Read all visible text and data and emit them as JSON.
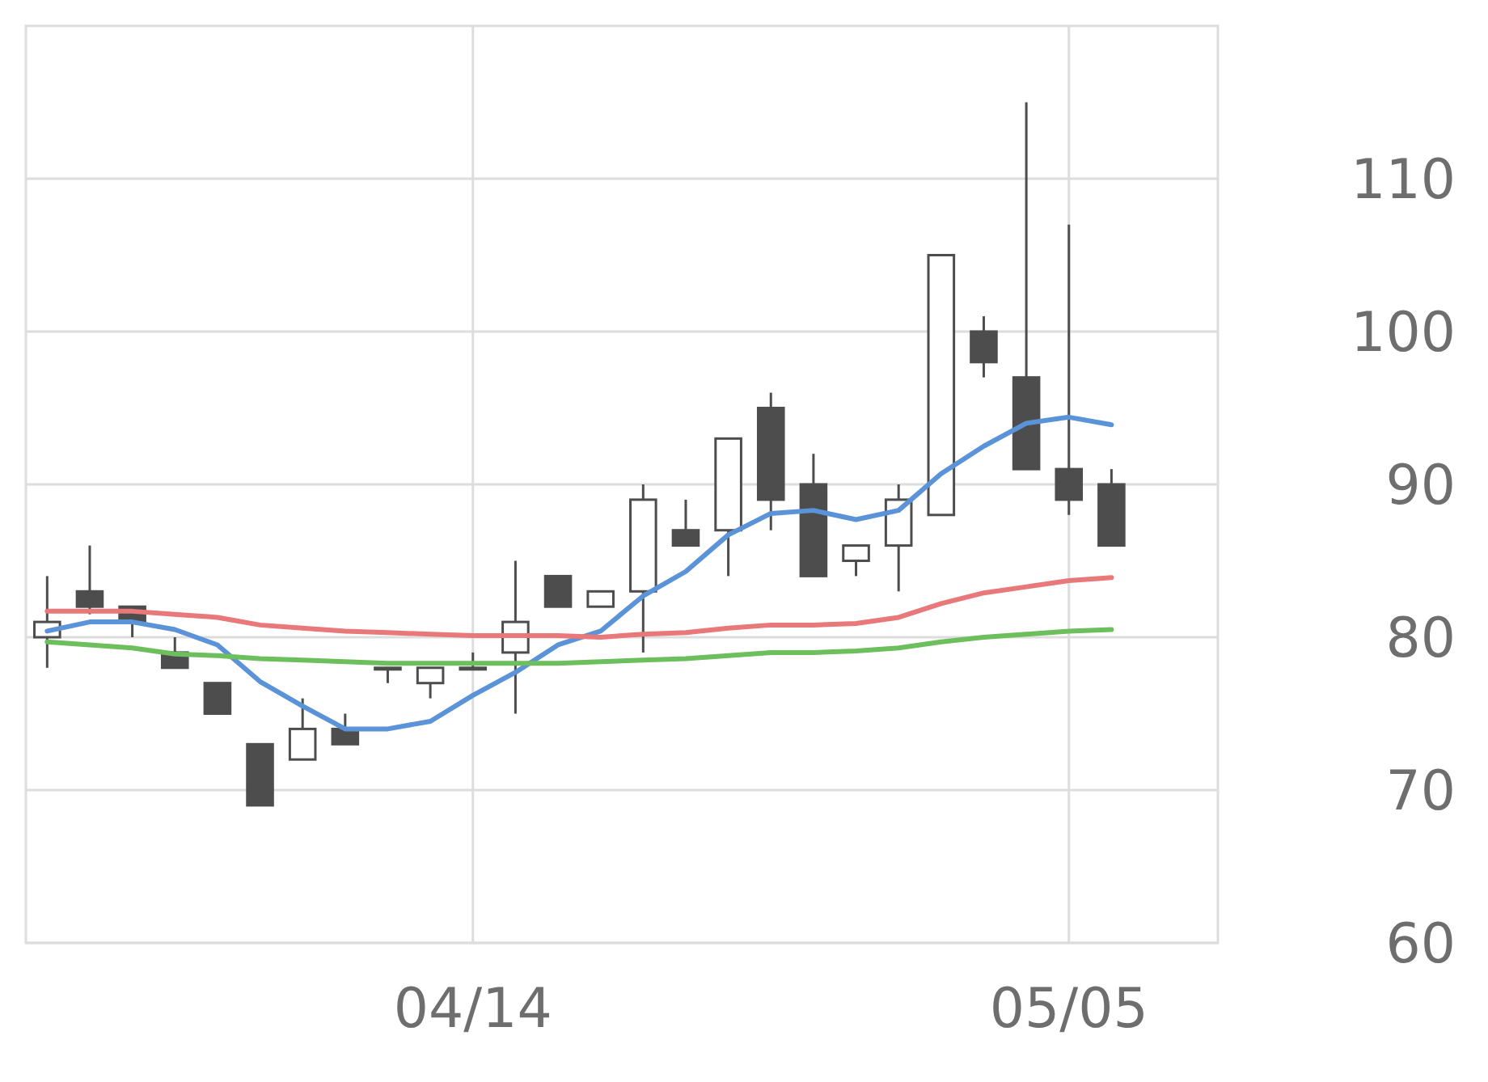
{
  "chart_data": {
    "type": "candlestick",
    "color": "#4d4d4d",
    "categories": [
      null,
      null,
      null,
      null,
      null,
      null,
      null,
      null,
      null,
      null,
      "04/14",
      null,
      null,
      null,
      null,
      null,
      null,
      null,
      null,
      null,
      null,
      null,
      null,
      null,
      "05/05",
      null
    ],
    "ohlc": [
      [
        80,
        84,
        78,
        81
      ],
      [
        83,
        86,
        81.5,
        82
      ],
      [
        82,
        82,
        80,
        81
      ],
      [
        79,
        80,
        78,
        78
      ],
      [
        77,
        77,
        75,
        75
      ],
      [
        73,
        73,
        69,
        69
      ],
      [
        72,
        76,
        72,
        74
      ],
      [
        74,
        75,
        73,
        73
      ],
      [
        78,
        78,
        77,
        78
      ],
      [
        77,
        78,
        76,
        78
      ],
      [
        78,
        79,
        78,
        78
      ],
      [
        79,
        85,
        75,
        81
      ],
      [
        84,
        84,
        82,
        82
      ],
      [
        82,
        83,
        82,
        83
      ],
      [
        83,
        90,
        79,
        89
      ],
      [
        87,
        89,
        86,
        86
      ],
      [
        87,
        93,
        84,
        93
      ],
      [
        95,
        96,
        87,
        89
      ],
      [
        90,
        92,
        84,
        84
      ],
      [
        85,
        86,
        84,
        86
      ],
      [
        86,
        90,
        83,
        89
      ],
      [
        88,
        105,
        88,
        105
      ],
      [
        100,
        101,
        97,
        98
      ],
      [
        97,
        115,
        91,
        91
      ],
      [
        91,
        107,
        88,
        89
      ],
      [
        90,
        91,
        86,
        86
      ]
    ],
    "series": [
      {
        "type": "line",
        "color": "#5b93d8",
        "values": [
          80.4,
          81,
          81,
          80.5,
          79.5,
          77.1,
          75.5,
          74,
          74,
          74.5,
          76.2,
          77.7,
          79.5,
          80.4,
          82.7,
          84.3,
          86.7,
          88.1,
          88.3,
          87.7,
          88.3,
          90.7,
          92.5,
          94,
          94.4,
          93.9
        ]
      },
      {
        "type": "line",
        "color": "#e8787a",
        "values": [
          81.7,
          81.7,
          81.7,
          81.5,
          81.3,
          80.8,
          80.6,
          80.4,
          80.3,
          80.2,
          80.1,
          80.1,
          80.1,
          80,
          80.2,
          80.3,
          80.6,
          80.8,
          80.8,
          80.9,
          81.3,
          82.2,
          82.9,
          83.3,
          83.7,
          83.9
        ]
      },
      {
        "type": "line",
        "color": "#6cbf5c",
        "values": [
          79.7,
          79.5,
          79.3,
          78.9,
          78.8,
          78.6,
          78.5,
          78.4,
          78.3,
          78.3,
          78.3,
          78.3,
          78.3,
          78.4,
          78.5,
          78.6,
          78.8,
          79,
          79,
          79.1,
          79.3,
          79.7,
          80,
          80.2,
          80.4,
          80.5
        ]
      }
    ],
    "ylim": [
      60,
      120
    ],
    "yticks": [
      60,
      70,
      80,
      90,
      100,
      110
    ],
    "grid": true
  }
}
